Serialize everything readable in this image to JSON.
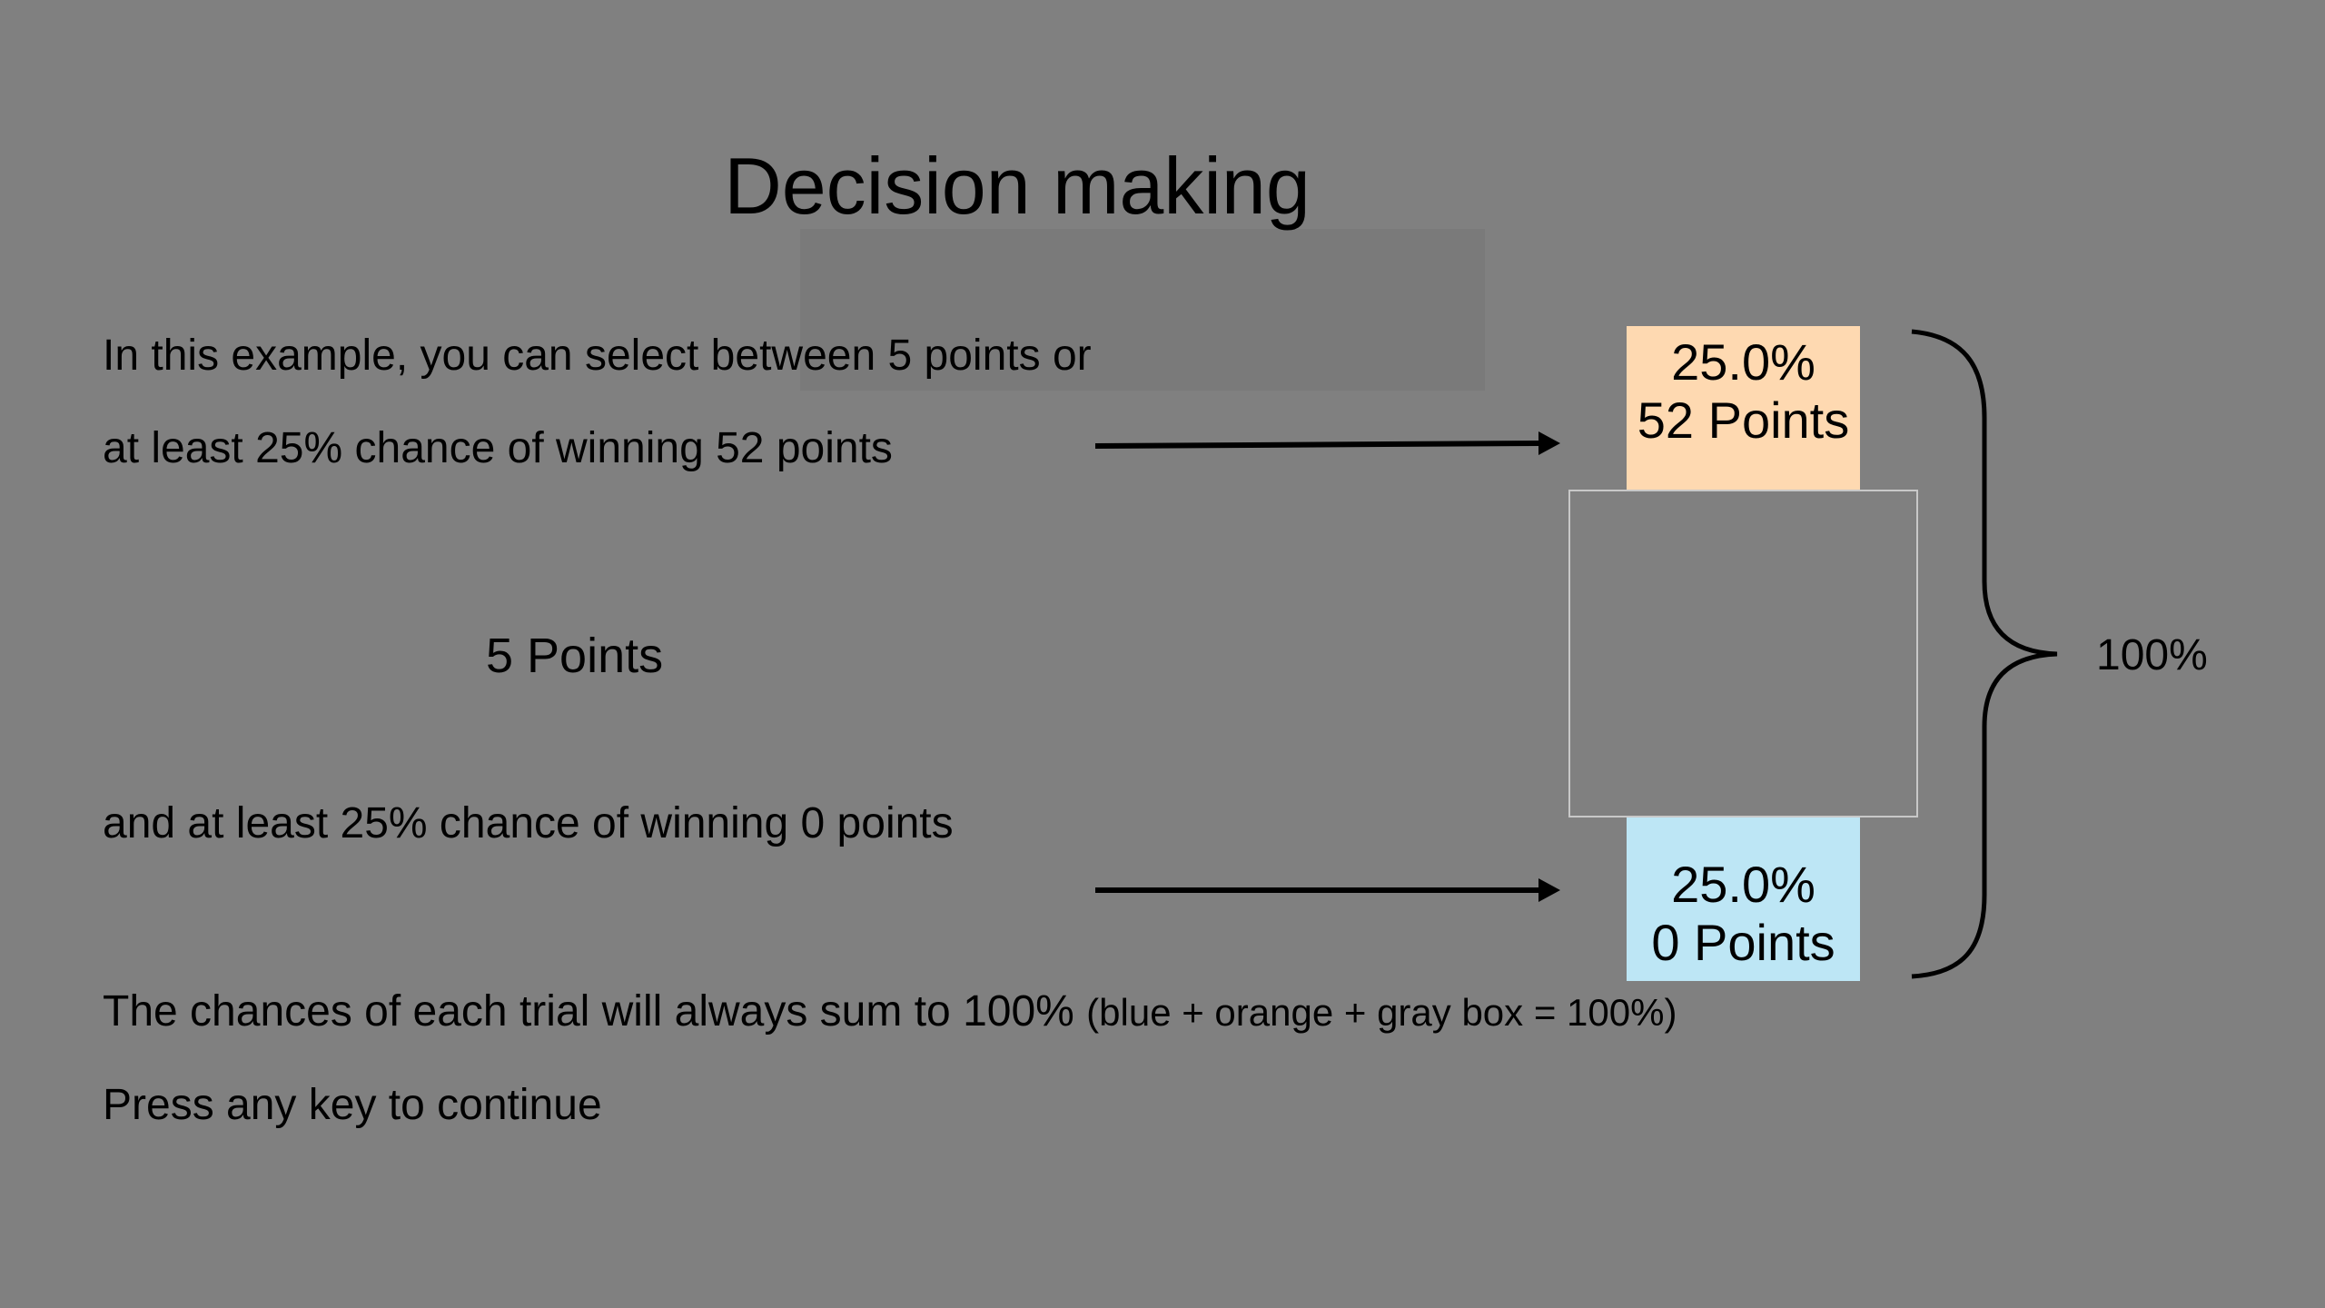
{
  "title": "Decision making",
  "instructions": {
    "line1": "In this example, you can select between 5 points or",
    "line2": "at least 25% chance of winning 52 points",
    "sure_option": "5 Points",
    "line3": "and at least 25% chance of winning 0 points",
    "line4_main": "The chances of each trial will always sum to 100%",
    "line4_note": "(blue + orange + gray box = 100%)",
    "continue": "Press any key to continue"
  },
  "gamble": {
    "top_box": {
      "percent": "25.0%",
      "points": "52 Points",
      "color": "#fed9b1"
    },
    "bottom_box": {
      "percent": "25.0%",
      "points": "0 Points",
      "color": "#bde6f5"
    },
    "total": "100%"
  },
  "colors": {
    "background": "#808080",
    "text": "#000000",
    "gray_box_border": "#c8c8c8"
  },
  "icons": [
    "arrow-right-icon",
    "curly-brace-icon"
  ]
}
